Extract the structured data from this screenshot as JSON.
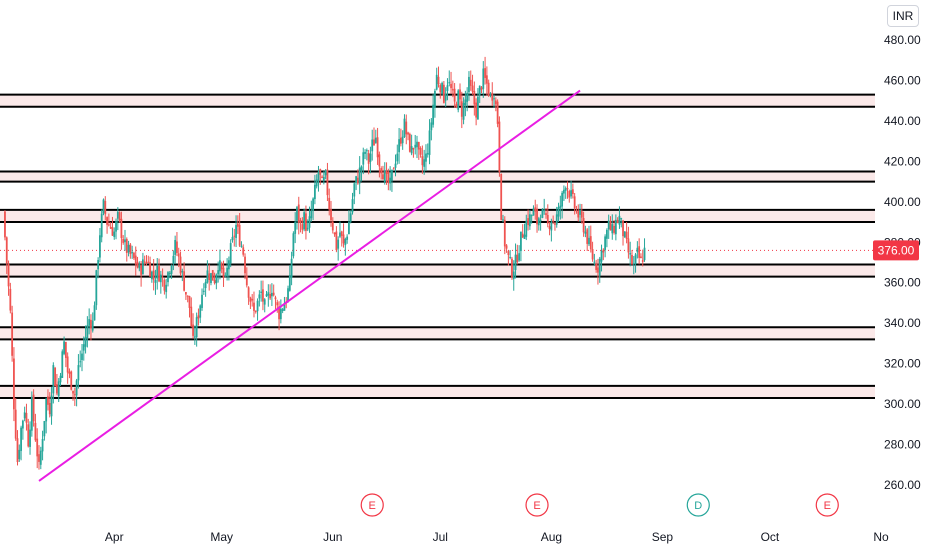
{
  "currency": "INR",
  "last_price_label": "376.00",
  "colors": {
    "up": "#26a69a",
    "down": "#ef5350",
    "trendline": "#e91ee3",
    "zone_fill": "#fbe9e9",
    "zone_line": "#000000",
    "last_price": "#f23645",
    "axis_text": "#131722",
    "event_earnings": "#f23645",
    "event_dividend": "#26a69a"
  },
  "chart_data": {
    "type": "candlestick",
    "y_axis": {
      "position": "right",
      "ylim": [
        243,
        488
      ],
      "ticks": [
        260,
        280,
        300,
        320,
        340,
        360,
        380,
        400,
        420,
        440,
        460,
        480
      ],
      "tick_labels": [
        "260.00",
        "280.00",
        "300.00",
        "320.00",
        "340.00",
        "360.00",
        "380.00",
        "400.00",
        "420.00",
        "440.00",
        "460.00",
        "480.00"
      ]
    },
    "x_axis": {
      "labels": [
        "Apr",
        "May",
        "Jun",
        "Jul",
        "Aug",
        "Sep",
        "Oct",
        "No"
      ],
      "label_days": [
        21,
        51,
        82,
        112,
        143,
        174,
        204,
        235
      ],
      "xlim": [
        0,
        235
      ]
    },
    "last_price": 376.0,
    "zones": [
      {
        "low": 447,
        "high": 453
      },
      {
        "low": 410,
        "high": 415
      },
      {
        "low": 390,
        "high": 396
      },
      {
        "low": 363,
        "high": 369
      },
      {
        "low": 332,
        "high": 338
      },
      {
        "low": 303,
        "high": 309
      }
    ],
    "trendline": {
      "start": {
        "day": 0,
        "value": 262
      },
      "end": {
        "day": 151,
        "value": 455
      }
    },
    "events": [
      {
        "label": "E",
        "day": 93,
        "kind": "earnings"
      },
      {
        "label": "E",
        "day": 139,
        "kind": "earnings"
      },
      {
        "label": "D",
        "day": 184,
        "kind": "dividend"
      },
      {
        "label": "E",
        "day": 220,
        "kind": "earnings"
      }
    ],
    "close_path": [
      {
        "day": -10,
        "close": 395
      },
      {
        "day": -9,
        "close": 370
      },
      {
        "day": -8,
        "close": 345
      },
      {
        "day": -7,
        "close": 300
      },
      {
        "day": -6,
        "close": 272
      },
      {
        "day": -5,
        "close": 288
      },
      {
        "day": -4,
        "close": 298
      },
      {
        "day": -3,
        "close": 282
      },
      {
        "day": -2,
        "close": 300
      },
      {
        "day": 0,
        "close": 268
      },
      {
        "day": 1,
        "close": 285
      },
      {
        "day": 2,
        "close": 302
      },
      {
        "day": 3,
        "close": 298
      },
      {
        "day": 4,
        "close": 318
      },
      {
        "day": 5,
        "close": 305
      },
      {
        "day": 7,
        "close": 330
      },
      {
        "day": 8,
        "close": 316
      },
      {
        "day": 10,
        "close": 305
      },
      {
        "day": 11,
        "close": 318
      },
      {
        "day": 12,
        "close": 325
      },
      {
        "day": 14,
        "close": 342
      },
      {
        "day": 15,
        "close": 340
      },
      {
        "day": 17,
        "close": 385
      },
      {
        "day": 18,
        "close": 398
      },
      {
        "day": 19,
        "close": 390
      },
      {
        "day": 21,
        "close": 385
      },
      {
        "day": 22,
        "close": 392
      },
      {
        "day": 24,
        "close": 378
      },
      {
        "day": 25,
        "close": 375
      },
      {
        "day": 27,
        "close": 370
      },
      {
        "day": 28,
        "close": 366
      },
      {
        "day": 30,
        "close": 372
      },
      {
        "day": 32,
        "close": 362
      },
      {
        "day": 33,
        "close": 366
      },
      {
        "day": 35,
        "close": 360
      },
      {
        "day": 36,
        "close": 365
      },
      {
        "day": 38,
        "close": 378
      },
      {
        "day": 39,
        "close": 372
      },
      {
        "day": 41,
        "close": 355
      },
      {
        "day": 42,
        "close": 348
      },
      {
        "day": 43,
        "close": 330
      },
      {
        "day": 45,
        "close": 350
      },
      {
        "day": 46,
        "close": 360
      },
      {
        "day": 47,
        "close": 365
      },
      {
        "day": 49,
        "close": 362
      },
      {
        "day": 50,
        "close": 370
      },
      {
        "day": 52,
        "close": 360
      },
      {
        "day": 53,
        "close": 372
      },
      {
        "day": 55,
        "close": 388
      },
      {
        "day": 56,
        "close": 382
      },
      {
        "day": 57,
        "close": 375
      },
      {
        "day": 58,
        "close": 360
      },
      {
        "day": 59,
        "close": 352
      },
      {
        "day": 60,
        "close": 345
      },
      {
        "day": 62,
        "close": 355
      },
      {
        "day": 63,
        "close": 348
      },
      {
        "day": 65,
        "close": 358
      },
      {
        "day": 66,
        "close": 350
      },
      {
        "day": 67,
        "close": 345
      },
      {
        "day": 69,
        "close": 352
      },
      {
        "day": 70,
        "close": 360
      },
      {
        "day": 71,
        "close": 385
      },
      {
        "day": 72,
        "close": 395
      },
      {
        "day": 73,
        "close": 388
      },
      {
        "day": 74,
        "close": 392
      },
      {
        "day": 75,
        "close": 385
      },
      {
        "day": 76,
        "close": 395
      },
      {
        "day": 77,
        "close": 405
      },
      {
        "day": 78,
        "close": 415
      },
      {
        "day": 79,
        "close": 408
      },
      {
        "day": 80,
        "close": 412
      },
      {
        "day": 81,
        "close": 398
      },
      {
        "day": 82,
        "close": 388
      },
      {
        "day": 83,
        "close": 378
      },
      {
        "day": 84,
        "close": 385
      },
      {
        "day": 85,
        "close": 378
      },
      {
        "day": 86,
        "close": 385
      },
      {
        "day": 87,
        "close": 395
      },
      {
        "day": 88,
        "close": 408
      },
      {
        "day": 89,
        "close": 412
      },
      {
        "day": 90,
        "close": 418
      },
      {
        "day": 91,
        "close": 425
      },
      {
        "day": 92,
        "close": 420
      },
      {
        "day": 93,
        "close": 428
      },
      {
        "day": 94,
        "close": 432
      },
      {
        "day": 95,
        "close": 420
      },
      {
        "day": 96,
        "close": 415
      },
      {
        "day": 97,
        "close": 410
      },
      {
        "day": 98,
        "close": 408
      },
      {
        "day": 99,
        "close": 418
      },
      {
        "day": 100,
        "close": 425
      },
      {
        "day": 101,
        "close": 432
      },
      {
        "day": 102,
        "close": 438
      },
      {
        "day": 103,
        "close": 430
      },
      {
        "day": 104,
        "close": 425
      },
      {
        "day": 105,
        "close": 430
      },
      {
        "day": 106,
        "close": 422
      },
      {
        "day": 107,
        "close": 418
      },
      {
        "day": 108,
        "close": 422
      },
      {
        "day": 109,
        "close": 432
      },
      {
        "day": 110,
        "close": 448
      },
      {
        "day": 111,
        "close": 462
      },
      {
        "day": 112,
        "close": 458
      },
      {
        "day": 113,
        "close": 452
      },
      {
        "day": 114,
        "close": 460
      },
      {
        "day": 115,
        "close": 455
      },
      {
        "day": 116,
        "close": 448
      },
      {
        "day": 117,
        "close": 452
      },
      {
        "day": 118,
        "close": 445
      },
      {
        "day": 119,
        "close": 450
      },
      {
        "day": 120,
        "close": 458
      },
      {
        "day": 121,
        "close": 452
      },
      {
        "day": 122,
        "close": 445
      },
      {
        "day": 123,
        "close": 455
      },
      {
        "day": 124,
        "close": 462
      },
      {
        "day": 125,
        "close": 458
      },
      {
        "day": 126,
        "close": 452
      },
      {
        "day": 127,
        "close": 455
      },
      {
        "day": 128,
        "close": 440
      },
      {
        "day": 129,
        "close": 395
      },
      {
        "day": 130,
        "close": 380
      },
      {
        "day": 131,
        "close": 372
      },
      {
        "day": 132,
        "close": 366
      },
      {
        "day": 133,
        "close": 370
      },
      {
        "day": 134,
        "close": 378
      },
      {
        "day": 135,
        "close": 385
      },
      {
        "day": 136,
        "close": 390
      },
      {
        "day": 137,
        "close": 392
      },
      {
        "day": 138,
        "close": 395
      },
      {
        "day": 139,
        "close": 390
      },
      {
        "day": 140,
        "close": 395
      },
      {
        "day": 141,
        "close": 392
      },
      {
        "day": 142,
        "close": 388
      },
      {
        "day": 143,
        "close": 392
      },
      {
        "day": 144,
        "close": 390
      },
      {
        "day": 145,
        "close": 395
      },
      {
        "day": 146,
        "close": 402
      },
      {
        "day": 147,
        "close": 410
      },
      {
        "day": 148,
        "close": 405
      },
      {
        "day": 149,
        "close": 400
      },
      {
        "day": 150,
        "close": 395
      },
      {
        "day": 151,
        "close": 392
      },
      {
        "day": 152,
        "close": 388
      },
      {
        "day": 153,
        "close": 382
      },
      {
        "day": 154,
        "close": 375
      },
      {
        "day": 155,
        "close": 370
      },
      {
        "day": 156,
        "close": 368
      },
      {
        "day": 157,
        "close": 375
      },
      {
        "day": 158,
        "close": 382
      },
      {
        "day": 159,
        "close": 388
      },
      {
        "day": 160,
        "close": 385
      },
      {
        "day": 161,
        "close": 390
      },
      {
        "day": 162,
        "close": 392
      },
      {
        "day": 163,
        "close": 385
      },
      {
        "day": 164,
        "close": 378
      },
      {
        "day": 165,
        "close": 372
      },
      {
        "day": 166,
        "close": 368
      },
      {
        "day": 167,
        "close": 374
      },
      {
        "day": 168,
        "close": 370
      },
      {
        "day": 169,
        "close": 376
      }
    ]
  }
}
